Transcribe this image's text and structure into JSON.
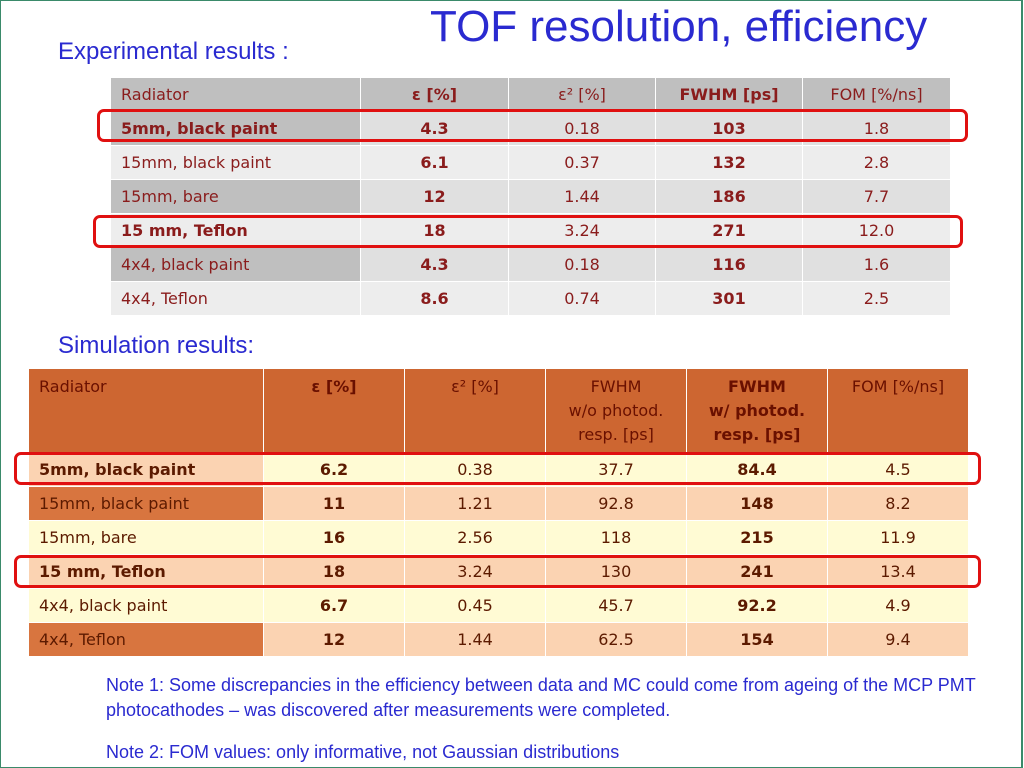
{
  "title": "TOF resolution, efficiency",
  "experimental": {
    "heading": "Experimental results :",
    "header": [
      "Radiator",
      "ε [%]",
      "ε² [%]",
      "FWHM [ps]",
      "FOM [%/ns]"
    ],
    "rows": [
      [
        "5mm, black paint",
        "4.3",
        "0.18",
        "103",
        "1.8"
      ],
      [
        "15mm, black paint",
        "6.1",
        "0.37",
        "132",
        "2.8"
      ],
      [
        "15mm, bare",
        "12",
        "1.44",
        "186",
        "7.7"
      ],
      [
        "15 mm, Teflon",
        "18",
        "3.24",
        "271",
        "12.0"
      ],
      [
        "4x4, black paint",
        "4.3",
        "0.18",
        "116",
        "1.6"
      ],
      [
        "4x4, Teflon",
        "8.6",
        "0.74",
        "301",
        "2.5"
      ]
    ]
  },
  "simulation": {
    "heading": "Simulation results:",
    "header": [
      "Radiator",
      "ε [%]",
      "ε² [%]",
      "FWHM\nw/o photod.\nresp. [ps]",
      "FWHM\nw/ photod.\nresp. [ps]",
      "FOM [%/ns]"
    ],
    "rows": [
      [
        "5mm, black paint",
        "6.2",
        "0.38",
        "37.7",
        "84.4",
        "4.5"
      ],
      [
        "15mm, black paint",
        "11",
        "1.21",
        "92.8",
        "148",
        "8.2"
      ],
      [
        "15mm, bare",
        "16",
        "2.56",
        "118",
        "215",
        "11.9"
      ],
      [
        "15 mm, Teflon",
        "18",
        "3.24",
        "130",
        "241",
        "13.4"
      ],
      [
        "4x4, black paint",
        "6.7",
        "0.45",
        "45.7",
        "92.2",
        "4.9"
      ],
      [
        "4x4, Teflon",
        "12",
        "1.44",
        "62.5",
        "154",
        "9.4"
      ]
    ]
  },
  "notes": [
    "Note 1: Some discrepancies in the efficiency between data and MC could come from ageing of the MCP PMT photocathodes – was discovered after measurements were completed.",
    "Note 2: FOM values: only informative, not Gaussian distributions"
  ]
}
